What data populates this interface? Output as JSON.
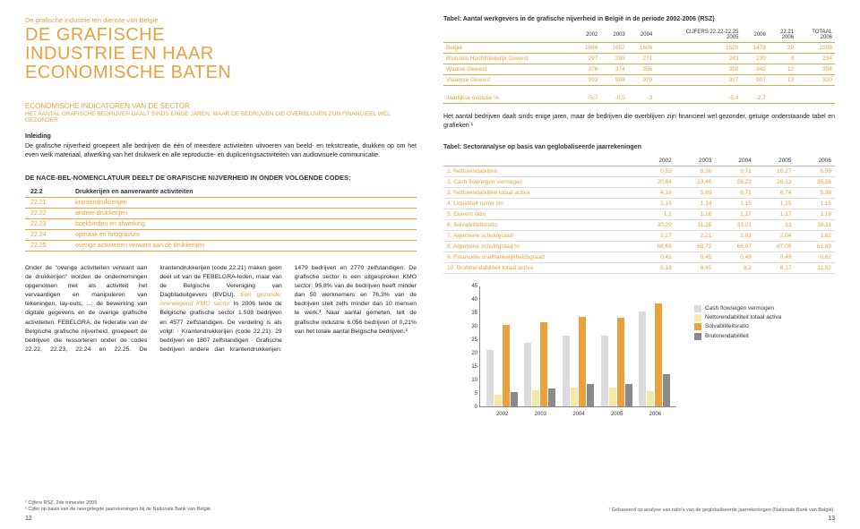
{
  "left": {
    "kicker": "De grafische industrie ten dienste van België",
    "title_l1": "DE GRAFISCHE",
    "title_l2": "INDUSTRIE EN HAAR",
    "title_l3": "ECONOMISCHE BATEN",
    "subhead": "ECONOMISCHE INDICATOREN VAN DE SECTOR",
    "subhead2": "HET AANTAL GRAFISCHE BEDRIJVEN DAALT SINDS ENIGE JAREN, MAAR DE BEDRIJVEN DIE OVERBLIJVEN ZIJN FINANCIEEL WEL GEZONDER",
    "inleiding_label": "Inleiding",
    "inleiding": "De grafische nijverheid groepeert alle bedrijven die één of meerdere activiteiten uitvoeren van beeld- en tekstcreatie, drukken op om het even welk materiaal, afwerking van het drukwerk en alle reproductie- en dupliceringsactiviteiten van audiovisuele communicatie.",
    "nace_head": "DE NACE-BEL-NOMENCLATUUR DEELT DE GRAFISCHE NIJVERHEID IN ONDER VOLGENDE CODES:",
    "codes": [
      [
        "22.2",
        "Drukkerijen en aanverwante activiteiten"
      ],
      [
        "22.21",
        "krantendrukkerijen"
      ],
      [
        "22.22",
        "andere drukkerijen"
      ],
      [
        "22.23",
        "boekbinden en afwerking"
      ],
      [
        "22.24",
        "opmaak en fotogravure"
      ],
      [
        "22.25",
        "overige activiteiten verwant aan de drukkerijen"
      ]
    ],
    "body": "Onder de \"overige activiteiten verwant aan de drukkerijen\" worden de ondernemingen opgenomen met als activiteit het vervaardigen en manipuleren van tekeningen, lay-outs, ...; de bewerking van digitale gegevens en de overige grafische activiteiten. FEBELGRA, de federatie van de Belgische grafische nijverheid, groepeert de bedrijven die ressorteren onder de codes 22.22, 22.23, 22.24 en 22.25. De krantendrukkerijen (code 22.21) maken geen deel uit van de FEBELGRA-leden, maar van de Belgische Vereniging van Dagbladuitgevers (BVDU). ",
    "body_orange": "Een gezonde, overwegend KMO sector",
    "body2": " In 2006 telde de Belgische grafische sector 1.508 bedrijven en 4577 zelfstandigen. De verdeling is als volgt: · Krantendrukkerijen (code 22.21): 29 bedrijven en 1807 zelfstandigen · Grafische bedrijven andere dan krantendrukkerijen: 1479 bedrijven en 2770 zelfstandigen. De grafische sector is een uitgesproken KMO sector: 95,8% van de bedrijven heeft minder dan 50 werknemers en 76,3% van de bedrijven stelt zelfs minder dan 10 mensen te werk.¹ Naar aantal gemeten, telt de grafische industrie 6.056 bedrijven of 0,21% van het totale aantal Belgische bedrijven.²",
    "foot1": "¹ Cijfers RSZ, 2de trimester 2006",
    "foot2": "² Cijfer op basis van de neergelegde jaarrekeningen bij de Nationale Bank van België.",
    "pageno": "12"
  },
  "right": {
    "table1_title": "Tabel: Aantal werkgevers in de grafische nijverheid in België in de periode 2002-2006 (RSZ)",
    "t1_head_pre": "CIJFERS 22.22-22.25",
    "t1_cols": [
      "",
      "2002",
      "2003",
      "2004",
      "2005",
      "2006",
      "22.21 2006",
      "TOTAAL 2006"
    ],
    "t1_rows": [
      [
        "België",
        "1666",
        "1657",
        "1606",
        "1520",
        "1479",
        "29",
        "1508"
      ],
      [
        "Brussels Hoofdstedelijk Gewest",
        "297",
        "285",
        "271",
        "243",
        "230",
        "4",
        "234"
      ],
      [
        "Waalse Gewest",
        "376",
        "374",
        "356",
        "350",
        "342",
        "12",
        "354"
      ],
      [
        "Vlaamse Gewest",
        "993",
        "998",
        "979",
        "927",
        "907",
        "13",
        "920"
      ]
    ],
    "t1_ev_label": "Jaarlijkse evolutie %",
    "t1_ev": [
      "-5,7",
      "-0,5",
      "-3",
      "-5,4",
      "-2,7",
      "",
      ""
    ],
    "para": "Het aantal bedrijven daalt sinds enige jaren, maar de bedrijven die overblijven zijn financieel wel gezonder, getuige onderstaande tabel en grafieken ¹",
    "table2_title": "Tabel: Sectoranalyse op basis van geglobaliseerde jaarrekeningen",
    "t2_cols": [
      "",
      "2002",
      "2003",
      "2004",
      "2005",
      "2006"
    ],
    "t2_rows": [
      [
        "1.",
        "Nettorendabiliteit",
        "0,52",
        "6,36",
        "9,71",
        "10,27",
        "6,59"
      ],
      [
        "2.",
        "Cash flow/eigen vermogen",
        "20,84",
        "23,46",
        "26,22",
        "26,13",
        "35,26"
      ],
      [
        "3.",
        "Nettorendabiliteit totaal activa",
        "4,16",
        "5,69",
        "6,71",
        "6,74",
        "5,38"
      ],
      [
        "4.",
        "Liquiditeit ruime zin",
        "1,16",
        "1,14",
        "1,15",
        "1,15",
        "1,15"
      ],
      [
        "5.",
        "Current ratio",
        "1,2",
        "1,16",
        "1,17",
        "1,17",
        "1,19"
      ],
      [
        "6.",
        "Solvabiliteitsratio",
        "30,29",
        "31,25",
        "33,01",
        "33",
        "38,11"
      ],
      [
        "7.",
        "Algemene schuldgraad",
        "2,27",
        "2,21",
        "2,03",
        "2,04",
        "1,62"
      ],
      [
        "8.",
        "Algemene schuldgraad %",
        "68,68",
        "68,72",
        "66,97",
        "67,09",
        "61,89"
      ],
      [
        "9.",
        "Financiële onafhankelijkheidsgraad",
        "0,41",
        "0,45",
        "0,49",
        "0,49",
        "0,62"
      ],
      [
        "10.",
        "Brutorendabiliteit totaal activa",
        "5,18",
        "6,45",
        "8,2",
        "8,17",
        "11,92"
      ]
    ],
    "chart": {
      "type": "bar",
      "ylim": [
        0,
        45
      ],
      "ytick_step": 5,
      "categories": [
        "2002",
        "2003",
        "2004",
        "2005",
        "2006"
      ],
      "series": [
        {
          "name": "Cash flow/eigen vermogen",
          "color": "#dcdcdc",
          "values": [
            20.84,
            23.46,
            26.22,
            26.13,
            35.26
          ]
        },
        {
          "name": "Nettorendabiliteit totaal activa",
          "color": "#f7e7a8",
          "values": [
            4.16,
            5.69,
            6.71,
            6.74,
            5.38
          ]
        },
        {
          "name": "Solvabiliteitsratio",
          "color": "#e8a23e",
          "values": [
            30.29,
            31.25,
            33.01,
            33,
            38.11
          ]
        },
        {
          "name": "Brutorendabiliteit",
          "color": "#8a8a8a",
          "values": [
            5.18,
            6.45,
            8.2,
            8.17,
            11.92
          ]
        }
      ],
      "grid_color": "#dddddd",
      "axis_color": "#888888",
      "label_fontsize": 6
    },
    "foot": "¹ Gebaseerd op analyse van ratio's van de geglobaliseerde jaarrekeningen (Nationale Bank van België).",
    "pageno": "13"
  }
}
